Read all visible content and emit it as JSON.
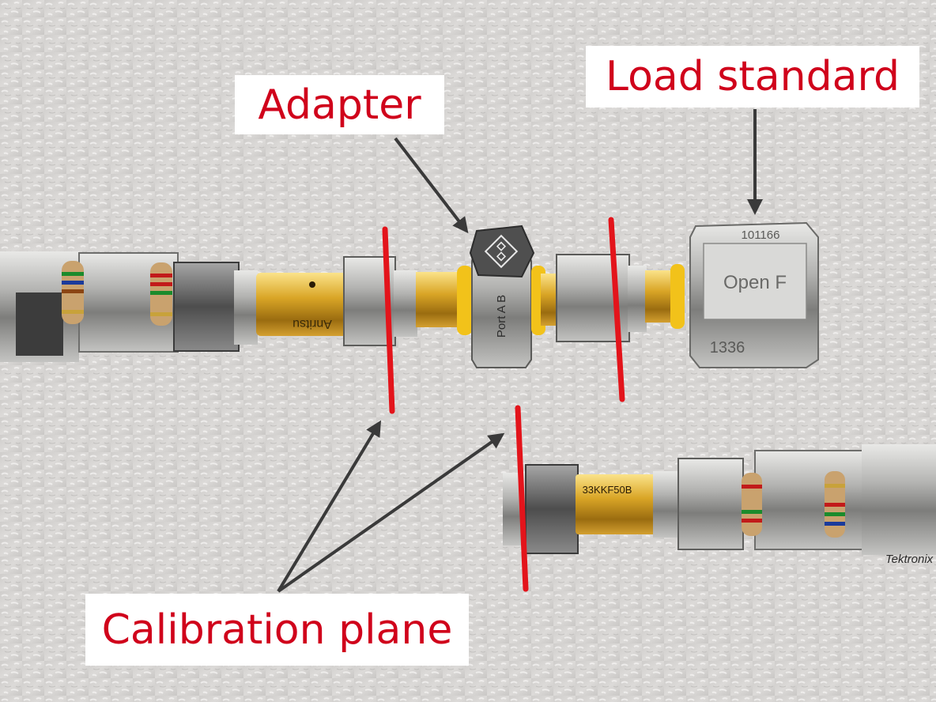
{
  "labels": {
    "adapter": "Adapter",
    "load_standard": "Load standard",
    "calibration_plane": "Calibration plane"
  },
  "printed_markings": {
    "vna_cable_brand": "Anritsu",
    "load_brand_fragment": "Open F",
    "load_serial_fragment": "101166",
    "load_part_fragment": "1336",
    "adapter_port_marking": "Port A B",
    "right_connector_marking": "33KKF50B",
    "right_cable_brand": "Tektronix"
  },
  "colors": {
    "label_text": "#d0021b",
    "label_background": "#ffffff",
    "calibration_line": "#e3141b",
    "arrow": "#3a3a3a",
    "background": "#d6d4d2",
    "gold": "#d9a526",
    "steel": "#b9b9b7",
    "yellow_ring": "#f2c21a"
  },
  "icons": {
    "rs_logo": "rohde-schwarz-diamond-logo"
  }
}
